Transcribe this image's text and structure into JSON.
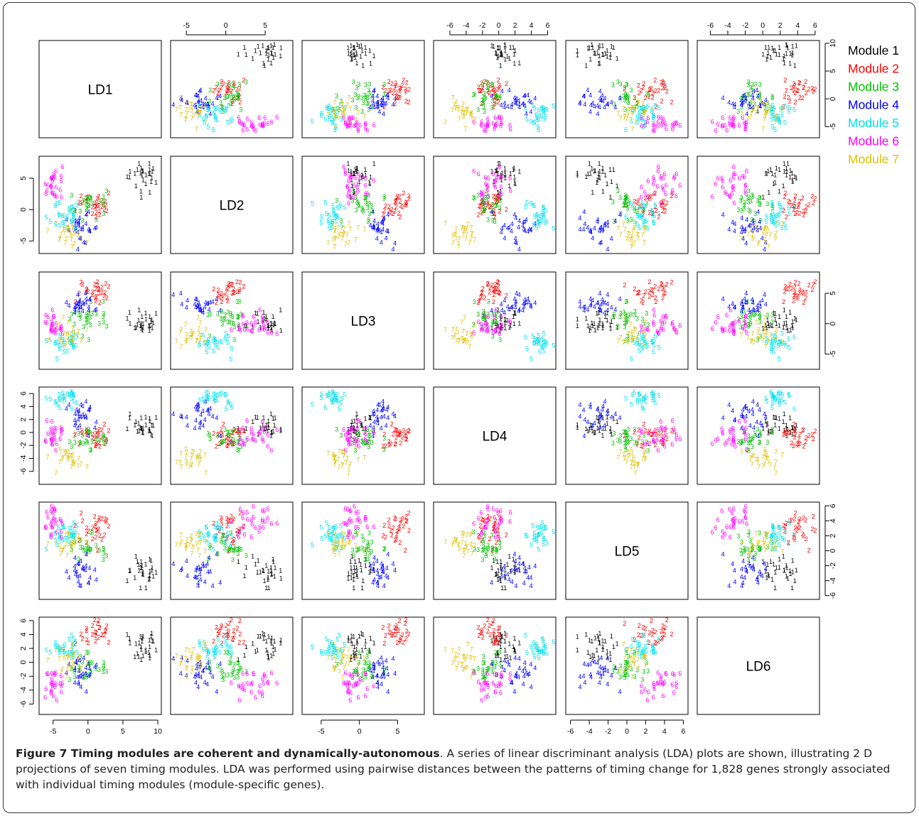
{
  "chart_data": {
    "type": "scatter",
    "kind": "pairs-matrix",
    "variables": [
      "LD1",
      "LD2",
      "LD3",
      "LD4",
      "LD5",
      "LD6"
    ],
    "ranges": {
      "LD1": [
        -7,
        10.5
      ],
      "LD2": [
        -7,
        8.5
      ],
      "LD3": [
        -7.5,
        8.5
      ],
      "LD4": [
        -8,
        7
      ],
      "LD5": [
        -6.5,
        6.5
      ],
      "LD6": [
        -7.5,
        6.5
      ]
    },
    "ticks": {
      "LD1": [
        -5,
        0,
        5,
        10
      ],
      "LD2": [
        -5,
        0,
        5
      ],
      "LD3": [
        -5,
        0,
        5
      ],
      "LD4": [
        -6,
        -4,
        -2,
        0,
        2,
        4,
        6
      ],
      "LD5": [
        -6,
        -4,
        -2,
        0,
        2,
        4,
        6
      ],
      "LD6": [
        -6,
        -4,
        -2,
        0,
        2,
        4,
        6
      ]
    },
    "axis_placement": {
      "top": [
        "LD2",
        "LD4",
        "LD6"
      ],
      "bottom": [
        "LD1",
        "LD3",
        "LD5"
      ],
      "left": [
        "LD2",
        "LD4",
        "LD6"
      ],
      "right": [
        "LD1",
        "LD3",
        "LD5"
      ]
    },
    "points_per_module": 28,
    "series": [
      {
        "name": "Module 1",
        "label": "1",
        "color": "#000000",
        "center": [
          8.0,
          5.0,
          0.0,
          0.5,
          -3.0,
          2.0
        ],
        "spread": [
          1.2,
          1.3,
          0.9,
          1.0,
          1.1,
          1.1
        ]
      },
      {
        "name": "Module 2",
        "label": "2",
        "color": "#ff0000",
        "center": [
          1.0,
          0.5,
          5.0,
          -1.0,
          2.5,
          4.0
        ],
        "spread": [
          1.3,
          1.2,
          1.0,
          1.0,
          1.2,
          1.2
        ]
      },
      {
        "name": "Module 3",
        "label": "3",
        "color": "#00c000",
        "center": [
          0.0,
          0.5,
          0.5,
          -1.0,
          0.0,
          -1.2
        ],
        "spread": [
          1.3,
          1.2,
          1.0,
          1.0,
          1.0,
          1.0
        ]
      },
      {
        "name": "Module 4",
        "label": "4",
        "color": "#0000ff",
        "center": [
          -1.0,
          -3.5,
          2.8,
          2.5,
          -3.0,
          -2.0
        ],
        "spread": [
          1.2,
          1.2,
          1.0,
          1.0,
          1.0,
          1.0
        ]
      },
      {
        "name": "Module 5",
        "label": "5",
        "color": "#00e0ee",
        "center": [
          -3.5,
          -1.5,
          -3.5,
          4.8,
          2.0,
          1.5
        ],
        "spread": [
          1.2,
          1.2,
          1.0,
          0.9,
          1.0,
          1.0
        ]
      },
      {
        "name": "Module 6",
        "label": "6",
        "color": "#ff00ff",
        "center": [
          -5.0,
          4.0,
          -0.5,
          -1.0,
          4.0,
          -3.5
        ],
        "spread": [
          1.2,
          1.3,
          1.0,
          1.0,
          1.1,
          1.1
        ]
      },
      {
        "name": "Module 7",
        "label": "7",
        "color": "#e0c000",
        "center": [
          -3.0,
          -3.8,
          -2.5,
          -5.0,
          0.5,
          0.0
        ],
        "spread": [
          1.2,
          1.1,
          1.0,
          1.0,
          1.0,
          1.0
        ]
      }
    ]
  },
  "caption": {
    "bold": "Figure 7 Timing modules are coherent and dynamically-autonomous",
    "text": ". A series of linear discriminant analysis (LDA) plots are shown, illustrating 2 D projections of seven timing modules. LDA was performed using pairwise distances between the patterns of timing change for 1,828 genes strongly associated with individual timing modules (module-specific genes)."
  }
}
